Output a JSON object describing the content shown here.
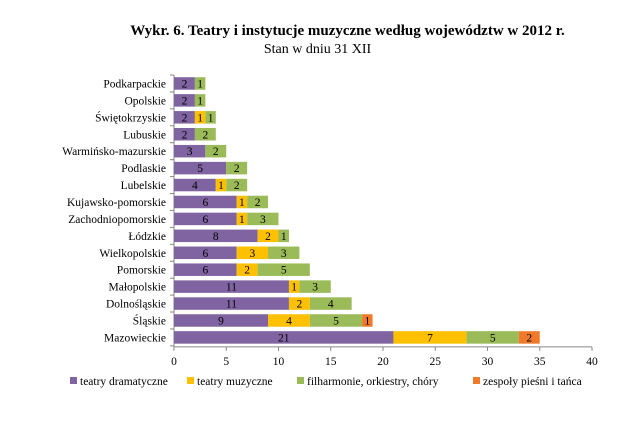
{
  "title": "Wykr. 6. Teatry i instytucje muzyczne według województw w 2012 r.",
  "subtitle": "Stan w dniu 31 XII",
  "chart_data": {
    "type": "bar",
    "orientation": "horizontal",
    "stacked": true,
    "categories": [
      "Podkarpackie",
      "Opolskie",
      "Świętokrzyskie",
      "Lubuskie",
      "Warmińsko-mazurskie",
      "Podlaskie",
      "Lubelskie",
      "Kujawsko-pomorskie",
      "Zachodniopomorskie",
      "Łódzkie",
      "Wielkopolskie",
      "Pomorskie",
      "Małopolskie",
      "Dolnośląskie",
      "Śląskie",
      "Mazowieckie"
    ],
    "series": [
      {
        "name": "teatry dramatyczne",
        "color": "#8064a2",
        "values": [
          2,
          2,
          2,
          2,
          3,
          5,
          4,
          6,
          6,
          8,
          6,
          6,
          11,
          11,
          9,
          21
        ]
      },
      {
        "name": "teatry muzyczne",
        "color": "#ffc000",
        "values": [
          0,
          0,
          1,
          0,
          0,
          0,
          1,
          1,
          1,
          2,
          3,
          2,
          1,
          2,
          4,
          7
        ]
      },
      {
        "name": "filharmonie, orkiestry, chóry",
        "color": "#9bbb59",
        "values": [
          1,
          1,
          1,
          2,
          2,
          2,
          2,
          2,
          3,
          1,
          3,
          5,
          3,
          4,
          5,
          5
        ]
      },
      {
        "name": "zespoły pieśni i tańca",
        "color": "#f07a2a",
        "values": [
          0,
          0,
          0,
          0,
          0,
          0,
          0,
          0,
          0,
          0,
          0,
          0,
          0,
          0,
          1,
          2
        ]
      }
    ],
    "xlim": [
      0,
      40
    ],
    "x_ticks": [
      0,
      5,
      10,
      15,
      20,
      25,
      30,
      35,
      40
    ],
    "grid": false,
    "legend": "bottom"
  }
}
